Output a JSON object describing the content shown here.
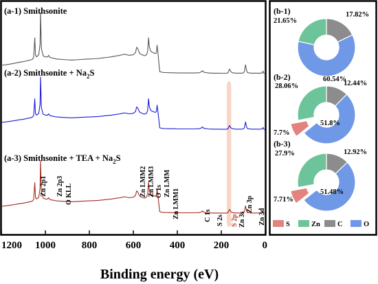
{
  "chart_data": [
    {
      "type": "line",
      "xlabel": "Binding energy (eV)",
      "xlim": [
        1200,
        0
      ],
      "x_ticks": [
        "1200",
        "1000",
        "800",
        "600",
        "400",
        "200",
        "0"
      ],
      "series": [
        {
          "name": "(a-1) Smithsonite",
          "color": "#555555",
          "label_parts": [
            "(a-1) Smithsonite"
          ],
          "x": [
            1200,
            1180,
            1160,
            1140,
            1120,
            1100,
            1080,
            1060,
            1053,
            1048,
            1045,
            1040,
            1030,
            1024,
            1022,
            1018,
            1010,
            1000,
            990,
            985,
            980,
            970,
            960,
            950,
            940,
            920,
            900,
            880,
            860,
            840,
            820,
            800,
            780,
            760,
            740,
            720,
            700,
            680,
            660,
            650,
            640,
            620,
            600,
            590,
            585,
            580,
            575,
            570,
            560,
            550,
            540,
            535,
            531,
            527,
            520,
            510,
            500,
            495,
            492,
            488,
            480,
            470,
            460,
            450,
            440,
            420,
            400,
            380,
            360,
            340,
            320,
            300,
            290,
            285,
            280,
            260,
            240,
            220,
            200,
            180,
            170,
            165,
            162,
            158,
            150,
            140,
            130,
            120,
            110,
            100,
            95,
            90,
            87,
            84,
            80,
            70,
            60,
            50,
            40,
            30,
            20,
            15,
            10,
            9,
            7,
            4,
            0
          ],
          "y": [
            0.0,
            0.05,
            0.12,
            0.2,
            0.28,
            0.35,
            0.45,
            0.55,
            0.75,
            2.6,
            1.0,
            0.8,
            1.0,
            2.0,
            5.0,
            1.6,
            0.9,
            0.8,
            0.8,
            0.95,
            0.75,
            0.7,
            0.65,
            0.6,
            0.58,
            0.55,
            0.52,
            0.5,
            0.52,
            0.55,
            0.58,
            0.6,
            0.62,
            0.65,
            0.7,
            0.75,
            0.8,
            0.88,
            0.95,
            1.0,
            1.05,
            0.95,
            1.0,
            1.2,
            1.7,
            1.6,
            1.3,
            1.1,
            1.0,
            0.9,
            1.0,
            1.3,
            2.6,
            1.7,
            1.3,
            1.2,
            1.1,
            1.2,
            1.9,
            1.2,
            -0.6,
            -0.65,
            -0.68,
            -0.68,
            -0.7,
            -0.7,
            -0.72,
            -0.72,
            -0.72,
            -0.72,
            -0.72,
            -0.7,
            -0.6,
            -0.5,
            -0.65,
            -0.72,
            -0.74,
            -0.74,
            -0.75,
            -0.75,
            -0.72,
            -0.45,
            -0.35,
            -0.55,
            -0.7,
            -0.73,
            -0.74,
            -0.74,
            -0.74,
            -0.72,
            -0.6,
            0.05,
            -0.3,
            -0.55,
            -0.7,
            -0.73,
            -0.74,
            -0.74,
            -0.74,
            -0.74,
            -0.74,
            -0.72,
            -0.55,
            -0.65,
            -0.75,
            -0.76,
            -0.77
          ]
        },
        {
          "name": "(a-2) Smithsonite + Na2S",
          "color": "#1a1ad6",
          "label_parts": [
            "(a-2) Smithsonite + Na",
            "2",
            "S"
          ],
          "x": [
            1200,
            1180,
            1160,
            1140,
            1120,
            1100,
            1080,
            1060,
            1053,
            1048,
            1045,
            1040,
            1030,
            1024,
            1022,
            1018,
            1010,
            1000,
            990,
            985,
            980,
            970,
            960,
            950,
            940,
            920,
            900,
            880,
            860,
            840,
            820,
            800,
            780,
            760,
            740,
            720,
            700,
            680,
            660,
            650,
            640,
            620,
            600,
            590,
            585,
            580,
            575,
            570,
            560,
            550,
            540,
            535,
            531,
            527,
            520,
            510,
            500,
            495,
            492,
            488,
            480,
            470,
            460,
            450,
            440,
            420,
            400,
            380,
            360,
            340,
            320,
            300,
            290,
            285,
            280,
            260,
            240,
            220,
            200,
            180,
            170,
            165,
            162,
            158,
            150,
            140,
            130,
            120,
            110,
            100,
            95,
            90,
            87,
            84,
            80,
            70,
            60,
            50,
            40,
            30,
            20,
            15,
            10,
            9,
            7,
            4,
            0
          ],
          "y": [
            0.0,
            0.05,
            0.12,
            0.2,
            0.28,
            0.35,
            0.45,
            0.55,
            0.75,
            2.6,
            1.0,
            0.8,
            1.0,
            2.0,
            5.0,
            1.6,
            0.9,
            0.8,
            0.8,
            0.95,
            0.75,
            0.7,
            0.65,
            0.6,
            0.58,
            0.55,
            0.52,
            0.5,
            0.52,
            0.55,
            0.58,
            0.6,
            0.62,
            0.65,
            0.7,
            0.75,
            0.8,
            0.88,
            0.95,
            1.0,
            1.05,
            0.95,
            1.0,
            1.2,
            1.7,
            1.6,
            1.3,
            1.1,
            1.0,
            0.9,
            1.0,
            1.3,
            2.6,
            1.7,
            1.3,
            1.2,
            1.1,
            1.2,
            1.9,
            1.2,
            -0.6,
            -0.65,
            -0.68,
            -0.68,
            -0.7,
            -0.7,
            -0.72,
            -0.72,
            -0.72,
            -0.72,
            -0.72,
            -0.7,
            -0.6,
            -0.5,
            -0.65,
            -0.72,
            -0.74,
            -0.74,
            -0.75,
            -0.75,
            -0.72,
            -0.45,
            -0.35,
            -0.55,
            -0.7,
            -0.73,
            -0.74,
            -0.74,
            -0.74,
            -0.72,
            -0.6,
            0.05,
            -0.3,
            -0.55,
            -0.7,
            -0.73,
            -0.74,
            -0.74,
            -0.74,
            -0.74,
            -0.74,
            -0.72,
            -0.55,
            -0.65,
            -0.75,
            -0.76,
            -0.77
          ]
        },
        {
          "name": "(a-3) Smithsonite + TEA + Na2S",
          "color": "#a52a1e",
          "label_parts": [
            "(a-3) Smithsonite + TEA + Na",
            "2",
            "S"
          ],
          "x": [
            1200,
            1180,
            1160,
            1140,
            1120,
            1100,
            1080,
            1060,
            1053,
            1048,
            1045,
            1040,
            1030,
            1024,
            1022,
            1018,
            1010,
            1000,
            990,
            985,
            980,
            970,
            960,
            950,
            940,
            920,
            900,
            880,
            860,
            840,
            820,
            800,
            780,
            760,
            740,
            720,
            700,
            680,
            660,
            650,
            640,
            620,
            600,
            590,
            585,
            580,
            575,
            570,
            560,
            550,
            540,
            535,
            531,
            527,
            520,
            510,
            500,
            495,
            492,
            488,
            480,
            470,
            460,
            450,
            440,
            420,
            400,
            380,
            360,
            340,
            320,
            300,
            290,
            285,
            280,
            260,
            240,
            220,
            200,
            180,
            170,
            165,
            162,
            158,
            150,
            140,
            130,
            120,
            110,
            100,
            95,
            90,
            87,
            84,
            80,
            70,
            60,
            50,
            40,
            30,
            20,
            15,
            10,
            9,
            7,
            4,
            0
          ],
          "y": [
            0.0,
            0.05,
            0.12,
            0.2,
            0.28,
            0.35,
            0.45,
            0.55,
            0.75,
            2.6,
            1.0,
            0.8,
            1.0,
            2.0,
            5.0,
            1.6,
            0.9,
            0.8,
            0.8,
            0.95,
            0.75,
            0.7,
            0.65,
            0.6,
            0.58,
            0.55,
            0.52,
            0.5,
            0.52,
            0.55,
            0.58,
            0.6,
            0.62,
            0.65,
            0.7,
            0.75,
            0.8,
            0.88,
            0.95,
            1.0,
            1.05,
            0.95,
            1.0,
            1.2,
            1.7,
            1.6,
            1.3,
            1.1,
            1.0,
            0.9,
            1.0,
            1.3,
            2.6,
            1.7,
            1.3,
            1.2,
            1.1,
            1.2,
            1.9,
            1.2,
            -0.6,
            -0.65,
            -0.68,
            -0.68,
            -0.7,
            -0.7,
            -0.72,
            -0.72,
            -0.72,
            -0.72,
            -0.72,
            -0.7,
            -0.6,
            -0.5,
            -0.65,
            -0.72,
            -0.74,
            -0.74,
            -0.75,
            -0.75,
            -0.72,
            -0.45,
            -0.35,
            -0.55,
            -0.7,
            -0.73,
            -0.74,
            -0.74,
            -0.74,
            -0.72,
            -0.6,
            0.05,
            -0.3,
            -0.55,
            -0.7,
            -0.73,
            -0.74,
            -0.74,
            -0.74,
            -0.74,
            -0.74,
            -0.72,
            -0.55,
            -0.65,
            -0.75,
            -0.76,
            -0.77
          ]
        }
      ],
      "peak_labels": [
        "Zn 2p1",
        "Zn 2p3",
        "O KLL",
        "Zn LMM2",
        "Zn LMM3",
        "O 1s",
        "Zn LMM",
        "Zn LMM1",
        "C 1s",
        "S 2s",
        "S 2p",
        "Zn 3s",
        "Zn 3p",
        "Zn 3d"
      ],
      "highlight_band": {
        "from": 175,
        "to": 155,
        "label": "S 2p"
      }
    },
    {
      "type": "pie",
      "title": "(b-1)",
      "categories": [
        "S",
        "Zn",
        "C",
        "O"
      ],
      "values": [
        0,
        21.65,
        17.82,
        60.54
      ],
      "labels": [
        "",
        "21.65%",
        "17.82%",
        "60.54%"
      ]
    },
    {
      "type": "pie",
      "title": "(b-2)",
      "categories": [
        "S",
        "Zn",
        "C",
        "O"
      ],
      "values": [
        7.7,
        28.06,
        12.44,
        51.8
      ],
      "labels": [
        "7.7%",
        "28.06%",
        "12.44%",
        "51.8%"
      ]
    },
    {
      "type": "pie",
      "title": "(b-3)",
      "categories": [
        "S",
        "Zn",
        "C",
        "O"
      ],
      "values": [
        7.71,
        27.9,
        12.92,
        51.48
      ],
      "labels": [
        "7.71%",
        "27.9%",
        "12.92%",
        "51.48%"
      ]
    }
  ],
  "legend": [
    {
      "label": "S",
      "color": "#e3837d"
    },
    {
      "label": "Zn",
      "color": "#6dc49a"
    },
    {
      "label": "C",
      "color": "#8c8c8c"
    },
    {
      "label": "O",
      "color": "#6f98e6"
    }
  ]
}
